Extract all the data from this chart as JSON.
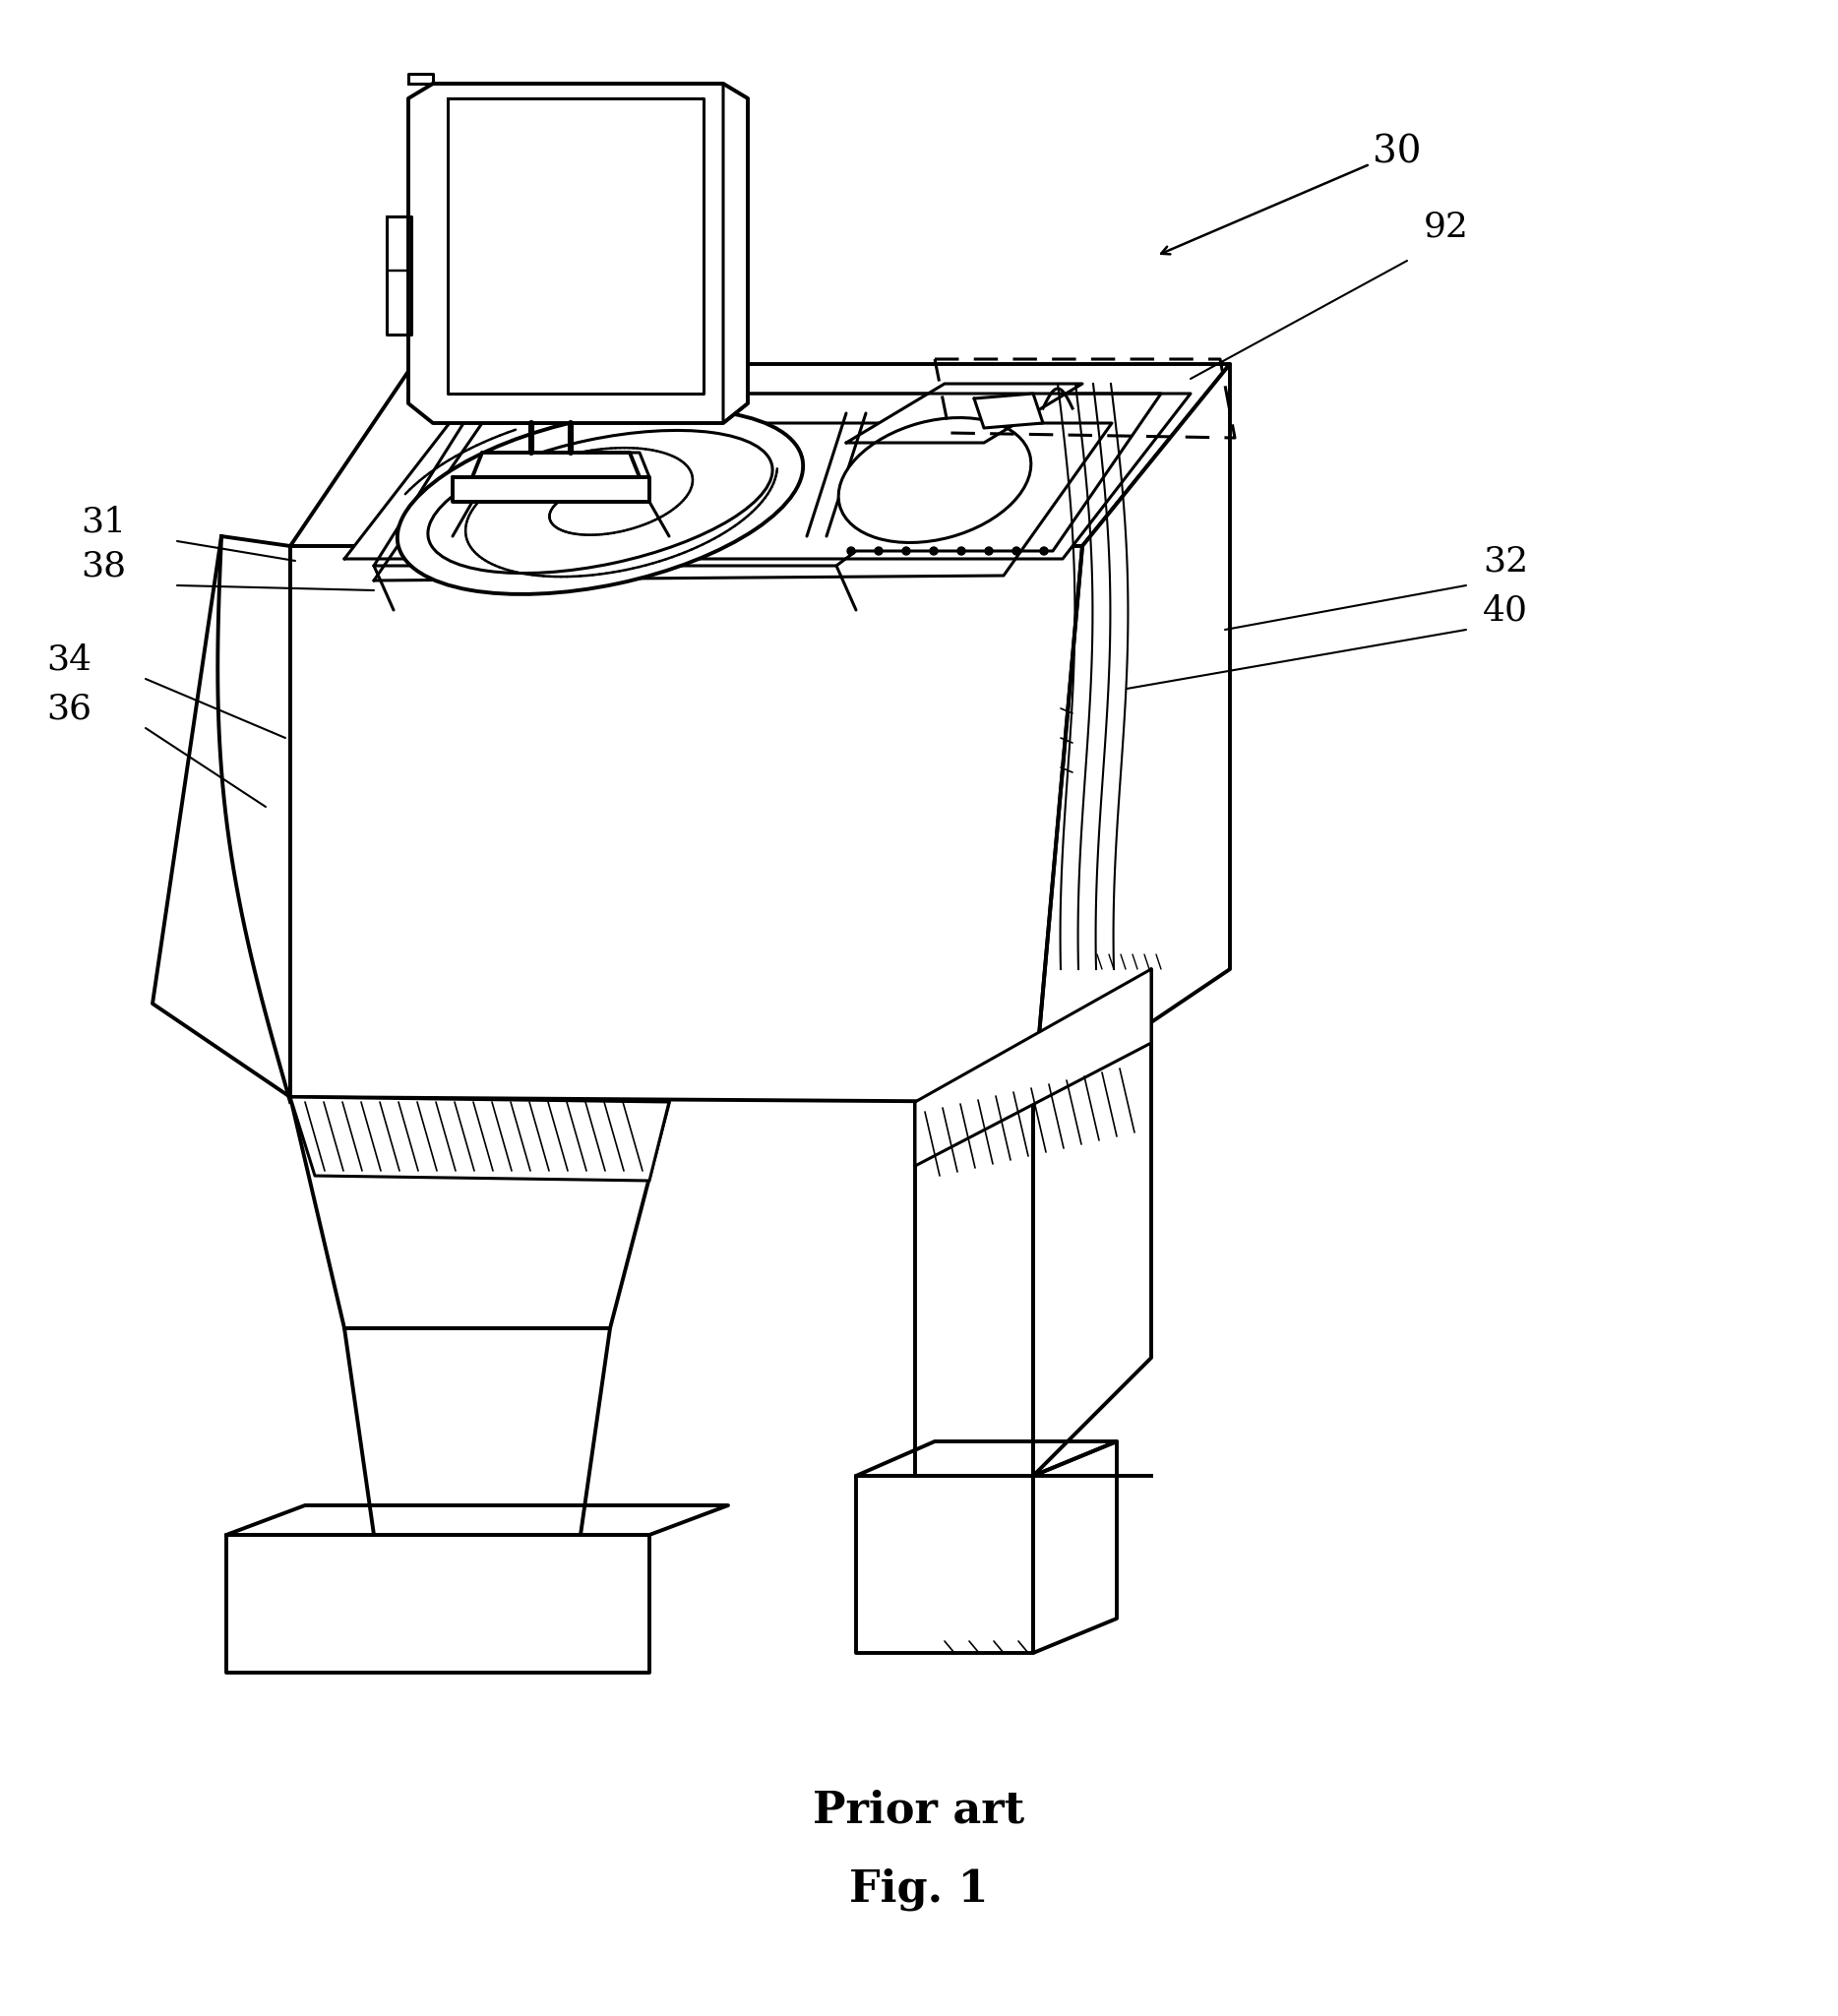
{
  "caption_line1": "Prior art",
  "caption_line2": "Fig. 1",
  "caption_fontsize": 32,
  "bg_color": "#ffffff",
  "line_color": "#000000",
  "label_fontsize": 26,
  "lw_main": 2.2,
  "lw_thick": 2.8,
  "lw_thin": 1.4
}
